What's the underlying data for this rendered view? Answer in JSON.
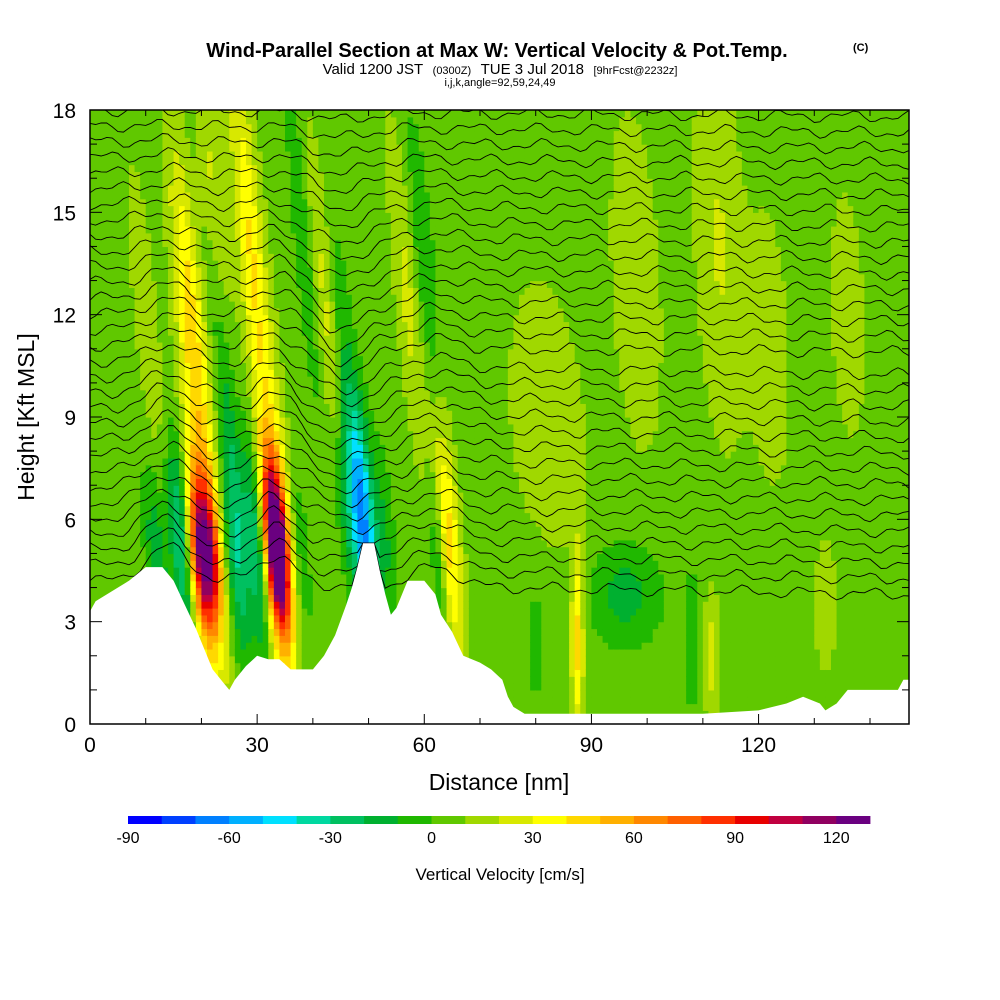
{
  "chart_data": {
    "type": "heatmap",
    "title": "Wind-Parallel Section at Max W: Vertical Velocity & Pot.Temp.",
    "title_mark": "(C)",
    "subtitle_valid": "Valid 1200 JST",
    "subtitle_utc": "(0300Z)",
    "subtitle_date": "TUE 3 Jul 2018",
    "subtitle_fcst": "[9hrFcst@2232z]",
    "subtitle_indices": "i,j,k,angle=92,59,24,49",
    "xlabel": "Distance [nm]",
    "ylabel": "Height [Kft MSL]",
    "xlim": [
      0,
      147
    ],
    "ylim": [
      0,
      18
    ],
    "x_ticks": [
      "0",
      "30",
      "60",
      "90",
      "120"
    ],
    "x_tick_values": [
      0,
      30,
      60,
      90,
      120
    ],
    "y_ticks": [
      "0",
      "3",
      "6",
      "9",
      "12",
      "15",
      "18"
    ],
    "y_tick_values": [
      0,
      3,
      6,
      9,
      12,
      15,
      18
    ],
    "grid": false,
    "terrain_kft": [
      [
        0,
        3.3
      ],
      [
        1,
        3.6
      ],
      [
        4,
        3.9
      ],
      [
        7,
        4.2
      ],
      [
        10,
        4.6
      ],
      [
        13,
        4.6
      ],
      [
        15,
        4.2
      ],
      [
        17,
        3.5
      ],
      [
        19,
        2.8
      ],
      [
        21,
        2.0
      ],
      [
        22,
        1.6
      ],
      [
        24,
        1.2
      ],
      [
        25,
        1.0
      ],
      [
        26,
        1.3
      ],
      [
        28,
        1.7
      ],
      [
        30,
        2.0
      ],
      [
        32,
        1.9
      ],
      [
        34,
        1.9
      ],
      [
        36,
        1.6
      ],
      [
        40,
        1.6
      ],
      [
        42,
        2.0
      ],
      [
        44,
        2.6
      ],
      [
        46,
        3.5
      ],
      [
        47,
        4.0
      ],
      [
        48,
        4.6
      ],
      [
        49,
        5.3
      ],
      [
        51,
        5.3
      ],
      [
        52,
        4.5
      ],
      [
        53,
        3.8
      ],
      [
        54,
        3.2
      ],
      [
        55,
        3.4
      ],
      [
        56,
        3.8
      ],
      [
        57,
        4.2
      ],
      [
        60,
        4.2
      ],
      [
        62,
        3.8
      ],
      [
        63,
        3.2
      ],
      [
        65,
        2.7
      ],
      [
        67,
        2.0
      ],
      [
        70,
        1.8
      ],
      [
        72,
        1.6
      ],
      [
        74,
        1.3
      ],
      [
        75,
        0.8
      ],
      [
        76,
        0.5
      ],
      [
        78,
        0.3
      ],
      [
        80,
        0.3
      ],
      [
        90,
        0.3
      ],
      [
        110,
        0.3
      ],
      [
        120,
        0.4
      ],
      [
        125,
        0.6
      ],
      [
        128,
        0.8
      ],
      [
        131,
        0.6
      ],
      [
        132,
        0.4
      ],
      [
        134,
        0.6
      ],
      [
        136,
        1.0
      ],
      [
        145,
        1.0
      ],
      [
        146,
        1.3
      ],
      [
        147,
        1.3
      ]
    ],
    "velocity_field": {
      "name": "Vertical Velocity [cm/s]",
      "background": 5,
      "features": [
        {
          "x": 20.5,
          "y": 5.0,
          "w": -0.45,
          "sx": 1.8,
          "sy": 1.5,
          "v": 95
        },
        {
          "x": 20.5,
          "y": 5.0,
          "w": -0.45,
          "sx": 2.8,
          "sy": 3.2,
          "v": 40
        },
        {
          "x": 16.5,
          "y": 5.3,
          "w": -0.45,
          "sx": 1.4,
          "sy": 2.2,
          "v": -55
        },
        {
          "x": 12.0,
          "y": 4.8,
          "w": -0.45,
          "sx": 1.3,
          "sy": 1.8,
          "v": -25
        },
        {
          "x": 26.0,
          "y": 5.2,
          "w": -0.45,
          "sx": 1.6,
          "sy": 2.4,
          "v": -40
        },
        {
          "x": 33.5,
          "y": 5.2,
          "w": -0.45,
          "sx": 1.4,
          "sy": 1.7,
          "v": 115
        },
        {
          "x": 33.5,
          "y": 5.2,
          "w": -0.45,
          "sx": 2.4,
          "sy": 3.0,
          "v": 45
        },
        {
          "x": 30.0,
          "y": 5.2,
          "w": -0.45,
          "sx": 1.3,
          "sy": 2.3,
          "v": -45
        },
        {
          "x": 37.5,
          "y": 5.0,
          "w": -0.45,
          "sx": 1.3,
          "sy": 2.0,
          "v": -20
        },
        {
          "x": 49.0,
          "y": 6.0,
          "w": -0.45,
          "sx": 1.5,
          "sy": 2.2,
          "v": -65
        },
        {
          "x": 46.0,
          "y": 6.5,
          "w": -0.45,
          "sx": 1.2,
          "sy": 1.8,
          "v": -20
        },
        {
          "x": 53.0,
          "y": 5.5,
          "w": -0.45,
          "sx": 1.2,
          "sy": 1.8,
          "v": -15
        },
        {
          "x": 64.5,
          "y": 5.3,
          "w": -0.45,
          "sx": 1.4,
          "sy": 2.6,
          "v": 40
        },
        {
          "x": 62.5,
          "y": 5.0,
          "w": -0.45,
          "sx": 1.0,
          "sy": 1.8,
          "v": -18
        },
        {
          "x": 18.0,
          "y": 12.0,
          "w": -0.55,
          "sx": 1.7,
          "sy": 3.5,
          "v": 38
        },
        {
          "x": 29.0,
          "y": 13.8,
          "w": -0.55,
          "sx": 1.7,
          "sy": 4.0,
          "v": 36
        },
        {
          "x": 22.0,
          "y": 15.5,
          "w": -0.55,
          "sx": 1.4,
          "sy": 3.0,
          "v": 18
        },
        {
          "x": 10.0,
          "y": 12.0,
          "w": -0.55,
          "sx": 1.4,
          "sy": 3.0,
          "v": 15
        },
        {
          "x": 42.0,
          "y": 12.5,
          "w": -0.55,
          "sx": 1.5,
          "sy": 3.5,
          "v": 18
        },
        {
          "x": 57.0,
          "y": 12.5,
          "w": -0.55,
          "sx": 1.5,
          "sy": 3.5,
          "v": 18
        },
        {
          "x": 38.5,
          "y": 14.0,
          "w": -0.55,
          "sx": 1.2,
          "sy": 3.5,
          "v": -15
        },
        {
          "x": 24.0,
          "y": 10.5,
          "w": -0.55,
          "sx": 1.2,
          "sy": 3.0,
          "v": -15
        },
        {
          "x": 46.0,
          "y": 10.5,
          "w": -0.55,
          "sx": 1.2,
          "sy": 3.0,
          "v": -15
        },
        {
          "x": 60.0,
          "y": 13.5,
          "w": -0.55,
          "sx": 1.3,
          "sy": 3.0,
          "v": -15
        },
        {
          "x": 82.0,
          "y": 9.0,
          "w": -0.4,
          "sx": 5.0,
          "sy": 3.0,
          "v": 12
        },
        {
          "x": 98.0,
          "y": 13.0,
          "w": -0.3,
          "sx": 3.0,
          "sy": 3.5,
          "v": 14
        },
        {
          "x": 113.0,
          "y": 14.0,
          "w": -0.25,
          "sx": 3.0,
          "sy": 4.0,
          "v": 16
        },
        {
          "x": 122.0,
          "y": 11.0,
          "w": -0.2,
          "sx": 2.5,
          "sy": 3.0,
          "v": 12
        },
        {
          "x": 136.0,
          "y": 12.0,
          "w": -0.2,
          "sx": 2.5,
          "sy": 3.0,
          "v": 10
        },
        {
          "x": 96.0,
          "y": 3.8,
          "w": 0,
          "sx": 4.5,
          "sy": 1.0,
          "v": -20
        },
        {
          "x": 87.5,
          "y": 2.5,
          "w": 0,
          "sx": 0.8,
          "sy": 2.0,
          "v": 38
        },
        {
          "x": 111.5,
          "y": 2.0,
          "w": 0,
          "sx": 1.0,
          "sy": 1.3,
          "v": 20
        },
        {
          "x": 108.0,
          "y": 2.5,
          "w": 0,
          "sx": 1.0,
          "sy": 1.5,
          "v": -12
        },
        {
          "x": 80.0,
          "y": 2.5,
          "w": 0,
          "sx": 1.0,
          "sy": 1.5,
          "v": -10
        },
        {
          "x": 132.0,
          "y": 3.5,
          "w": 0,
          "sx": 2.0,
          "sy": 2.0,
          "v": 8
        }
      ]
    },
    "colorbar": {
      "label": "Vertical Velocity [cm/s]",
      "min": -90,
      "max": 130,
      "ticks": [
        "-90",
        "-60",
        "-30",
        "0",
        "30",
        "60",
        "90",
        "120"
      ],
      "tick_values": [
        -90,
        -60,
        -30,
        0,
        30,
        60,
        90,
        120
      ],
      "colors": [
        "#0000ff",
        "#0040ff",
        "#0080ff",
        "#00b0ff",
        "#00e0ff",
        "#00d8a0",
        "#00c060",
        "#00b030",
        "#20b800",
        "#60c800",
        "#a0d800",
        "#d8e800",
        "#ffff00",
        "#ffd800",
        "#ffb000",
        "#ff8800",
        "#ff6000",
        "#ff3000",
        "#e80000",
        "#c00040",
        "#900060",
        "#6a0080"
      ]
    },
    "potential_temperature_contours": {
      "name": "Pot.Temp.",
      "count": 33,
      "color": "#000000"
    }
  }
}
